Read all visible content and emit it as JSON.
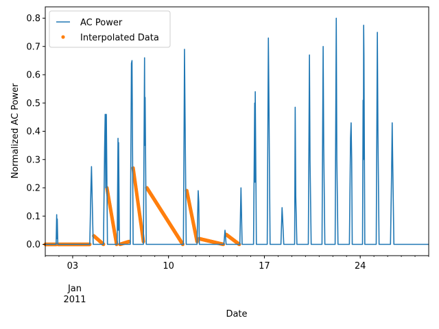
{
  "chart_data": {
    "type": "line",
    "title": "",
    "xlabel": "Date",
    "ylabel": "Normalized AC Power",
    "xlim": [
      "2011-01-01T00:00",
      "2011-01-29T00:00"
    ],
    "ylim": [
      -0.04,
      0.84
    ],
    "grid": false,
    "legend_placement": "upper-left",
    "x_major_ticks": [
      {
        "date": "2011-01-03",
        "label": "03"
      },
      {
        "date": "2011-01-10",
        "label": "10"
      },
      {
        "date": "2011-01-17",
        "label": "17"
      },
      {
        "date": "2011-01-24",
        "label": "24"
      }
    ],
    "x_offset_label": {
      "month": "Jan",
      "year": "2011"
    },
    "y_ticks": [
      0.0,
      0.1,
      0.2,
      0.3,
      0.4,
      0.5,
      0.6,
      0.7,
      0.8
    ],
    "y_tick_labels": [
      "0.0",
      "0.1",
      "0.2",
      "0.3",
      "0.4",
      "0.5",
      "0.6",
      "0.7",
      "0.8"
    ],
    "series": [
      {
        "name": "AC Power",
        "kind": "line",
        "color": "#1f77b4",
        "points": [
          [
            "2011-01-01T00:00",
            0
          ],
          [
            "2011-01-01T19:00",
            0
          ],
          [
            "2011-01-01T20:00",
            0.105
          ],
          [
            "2011-01-01T20:30",
            0.02
          ],
          [
            "2011-01-01T21:00",
            0.09
          ],
          [
            "2011-01-01T22:00",
            0
          ],
          [
            "2011-01-04T06:00",
            0
          ],
          [
            "2011-01-04T08:00",
            0.2
          ],
          [
            "2011-01-04T09:00",
            0.275
          ],
          [
            "2011-01-04T10:00",
            0.18
          ],
          [
            "2011-01-04T12:00",
            0
          ],
          [
            "2011-01-05T06:00",
            0
          ],
          [
            "2011-01-05T08:00",
            0.34
          ],
          [
            "2011-01-05T09:00",
            0.46
          ],
          [
            "2011-01-05T10:00",
            0.2
          ],
          [
            "2011-01-05T11:00",
            0.46
          ],
          [
            "2011-01-05T13:00",
            0
          ],
          [
            "2011-01-06T06:00",
            0
          ],
          [
            "2011-01-06T07:30",
            0.375
          ],
          [
            "2011-01-06T08:00",
            0.05
          ],
          [
            "2011-01-06T08:30",
            0.36
          ],
          [
            "2011-01-06T10:00",
            0
          ],
          [
            "2011-01-07T05:00",
            0
          ],
          [
            "2011-01-07T07:00",
            0.64
          ],
          [
            "2011-01-07T08:00",
            0.65
          ],
          [
            "2011-01-07T10:00",
            0
          ],
          [
            "2011-01-08T04:00",
            0
          ],
          [
            "2011-01-08T06:00",
            0.66
          ],
          [
            "2011-01-08T06:30",
            0.35
          ],
          [
            "2011-01-08T07:00",
            0.52
          ],
          [
            "2011-01-08T09:00",
            0
          ],
          [
            "2011-01-11T02:00",
            0
          ],
          [
            "2011-01-11T03:00",
            0.3
          ],
          [
            "2011-01-11T04:00",
            0.69
          ],
          [
            "2011-01-11T05:00",
            0.45
          ],
          [
            "2011-01-11T07:00",
            0
          ],
          [
            "2011-01-12T02:00",
            0
          ],
          [
            "2011-01-12T04:00",
            0.19
          ],
          [
            "2011-01-12T05:00",
            0.15
          ],
          [
            "2011-01-12T06:00",
            0
          ],
          [
            "2011-01-14T01:00",
            0
          ],
          [
            "2011-01-14T03:00",
            0.05
          ],
          [
            "2011-01-14T05:00",
            0
          ],
          [
            "2011-01-15T05:00",
            0
          ],
          [
            "2011-01-15T07:00",
            0.2
          ],
          [
            "2011-01-15T09:00",
            0
          ],
          [
            "2011-01-16T05:00",
            0
          ],
          [
            "2011-01-16T07:00",
            0.5
          ],
          [
            "2011-01-16T07:30",
            0.22
          ],
          [
            "2011-01-16T08:00",
            0.54
          ],
          [
            "2011-01-16T10:00",
            0
          ],
          [
            "2011-01-17T05:00",
            0
          ],
          [
            "2011-01-17T07:00",
            0.73
          ],
          [
            "2011-01-17T08:00",
            0.5
          ],
          [
            "2011-01-17T10:00",
            0
          ],
          [
            "2011-01-18T05:00",
            0
          ],
          [
            "2011-01-18T07:00",
            0.13
          ],
          [
            "2011-01-18T08:00",
            0.09
          ],
          [
            "2011-01-18T10:00",
            0
          ],
          [
            "2011-01-19T05:00",
            0
          ],
          [
            "2011-01-19T06:00",
            0.485
          ],
          [
            "2011-01-19T07:00",
            0.17
          ],
          [
            "2011-01-19T09:00",
            0
          ],
          [
            "2011-01-20T05:00",
            0
          ],
          [
            "2011-01-20T07:00",
            0.67
          ],
          [
            "2011-01-20T08:00",
            0.3
          ],
          [
            "2011-01-20T10:00",
            0
          ],
          [
            "2011-01-21T05:00",
            0
          ],
          [
            "2011-01-21T07:00",
            0.7
          ],
          [
            "2011-01-21T08:00",
            0.35
          ],
          [
            "2011-01-21T10:00",
            0
          ],
          [
            "2011-01-22T04:00",
            0
          ],
          [
            "2011-01-22T06:00",
            0.8
          ],
          [
            "2011-01-22T07:00",
            0.3
          ],
          [
            "2011-01-22T09:00",
            0
          ],
          [
            "2011-01-23T05:00",
            0
          ],
          [
            "2011-01-23T07:00",
            0.375
          ],
          [
            "2011-01-23T08:00",
            0.43
          ],
          [
            "2011-01-23T09:00",
            0.3
          ],
          [
            "2011-01-23T10:00",
            0
          ],
          [
            "2011-01-24T04:00",
            0
          ],
          [
            "2011-01-24T05:00",
            0.51
          ],
          [
            "2011-01-24T05:30",
            0.3
          ],
          [
            "2011-01-24T06:00",
            0.775
          ],
          [
            "2011-01-24T06:30",
            0.67
          ],
          [
            "2011-01-24T08:00",
            0
          ],
          [
            "2011-01-25T04:00",
            0
          ],
          [
            "2011-01-25T06:00",
            0.75
          ],
          [
            "2011-01-25T07:00",
            0.4
          ],
          [
            "2011-01-25T09:00",
            0
          ],
          [
            "2011-01-26T05:00",
            0
          ],
          [
            "2011-01-26T07:00",
            0.26
          ],
          [
            "2011-01-26T08:00",
            0.43
          ],
          [
            "2011-01-26T09:00",
            0.28
          ],
          [
            "2011-01-26T11:00",
            0
          ],
          [
            "2011-01-29T00:00",
            0
          ]
        ]
      },
      {
        "name": "Interpolated Data",
        "kind": "scatter",
        "color": "#ff7f0e",
        "segments": [
          [
            [
              "2011-01-01T00:00",
              0
            ],
            [
              "2011-01-01T20:00",
              0
            ]
          ],
          [
            [
              "2011-01-01T22:00",
              0
            ],
            [
              "2011-01-04T06:00",
              0
            ]
          ],
          [
            [
              "2011-01-04T13:00",
              0.03
            ],
            [
              "2011-01-05T06:00",
              0
            ]
          ],
          [
            [
              "2011-01-05T12:00",
              0.2
            ],
            [
              "2011-01-06T05:00",
              0
            ]
          ],
          [
            [
              "2011-01-06T11:00",
              0
            ],
            [
              "2011-01-07T03:00",
              0.01
            ]
          ],
          [
            [
              "2011-01-07T10:00",
              0.27
            ],
            [
              "2011-01-08T04:00",
              0.01
            ]
          ],
          [
            [
              "2011-01-08T10:00",
              0.2
            ],
            [
              "2011-01-11T01:00",
              0
            ]
          ],
          [
            [
              "2011-01-11T08:00",
              0.19
            ],
            [
              "2011-01-12T02:00",
              0.01
            ]
          ],
          [
            [
              "2011-01-12T06:00",
              0.02
            ],
            [
              "2011-01-14T00:00",
              0
            ]
          ],
          [
            [
              "2011-01-14T05:00",
              0.035
            ],
            [
              "2011-01-15T04:00",
              0
            ]
          ]
        ]
      }
    ]
  }
}
